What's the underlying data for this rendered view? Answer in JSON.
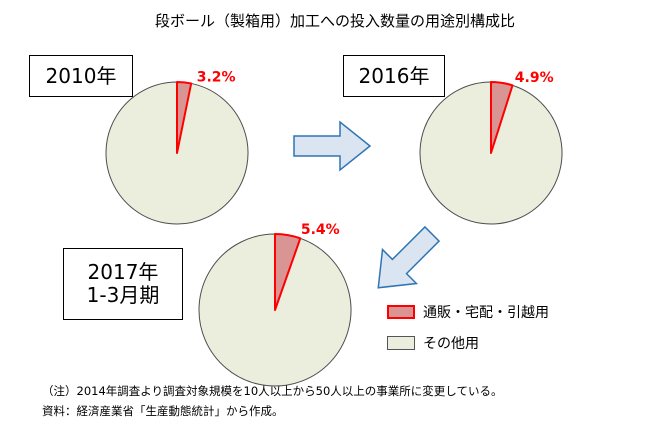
{
  "title": "段ボール（製箱用）加工への投入数量の用途別構成比",
  "colors": {
    "highlight_fill": "#d99594",
    "highlight_stroke": "#ff0000",
    "other_fill": "#eceedd",
    "other_stroke": "#4d4d4d",
    "label_color": "#ff0000",
    "arrow_fill": "#dbe5f1",
    "arrow_stroke": "#2e75b6"
  },
  "legend": [
    {
      "label": "通販・宅配・引越用"
    },
    {
      "label": "その他用"
    }
  ],
  "notes": [
    "（注）2014年調査より調査対象規模を10人以上から50人以上の事業所に変更している。",
    "資料：経済産業省「生産動態統計」から作成。"
  ],
  "chart_data": [
    {
      "type": "pie",
      "period_label": "2010年",
      "categories": [
        "通販・宅配・引越用",
        "その他用"
      ],
      "values": [
        3.2,
        96.8
      ],
      "data_label": "3.2%"
    },
    {
      "type": "pie",
      "period_label": "2016年",
      "categories": [
        "通販・宅配・引越用",
        "その他用"
      ],
      "values": [
        4.9,
        95.1
      ],
      "data_label": "4.9%"
    },
    {
      "type": "pie",
      "period_label": "2017年\n1-3月期",
      "categories": [
        "通販・宅配・引越用",
        "その他用"
      ],
      "values": [
        5.4,
        94.6
      ],
      "data_label": "5.4%"
    }
  ]
}
